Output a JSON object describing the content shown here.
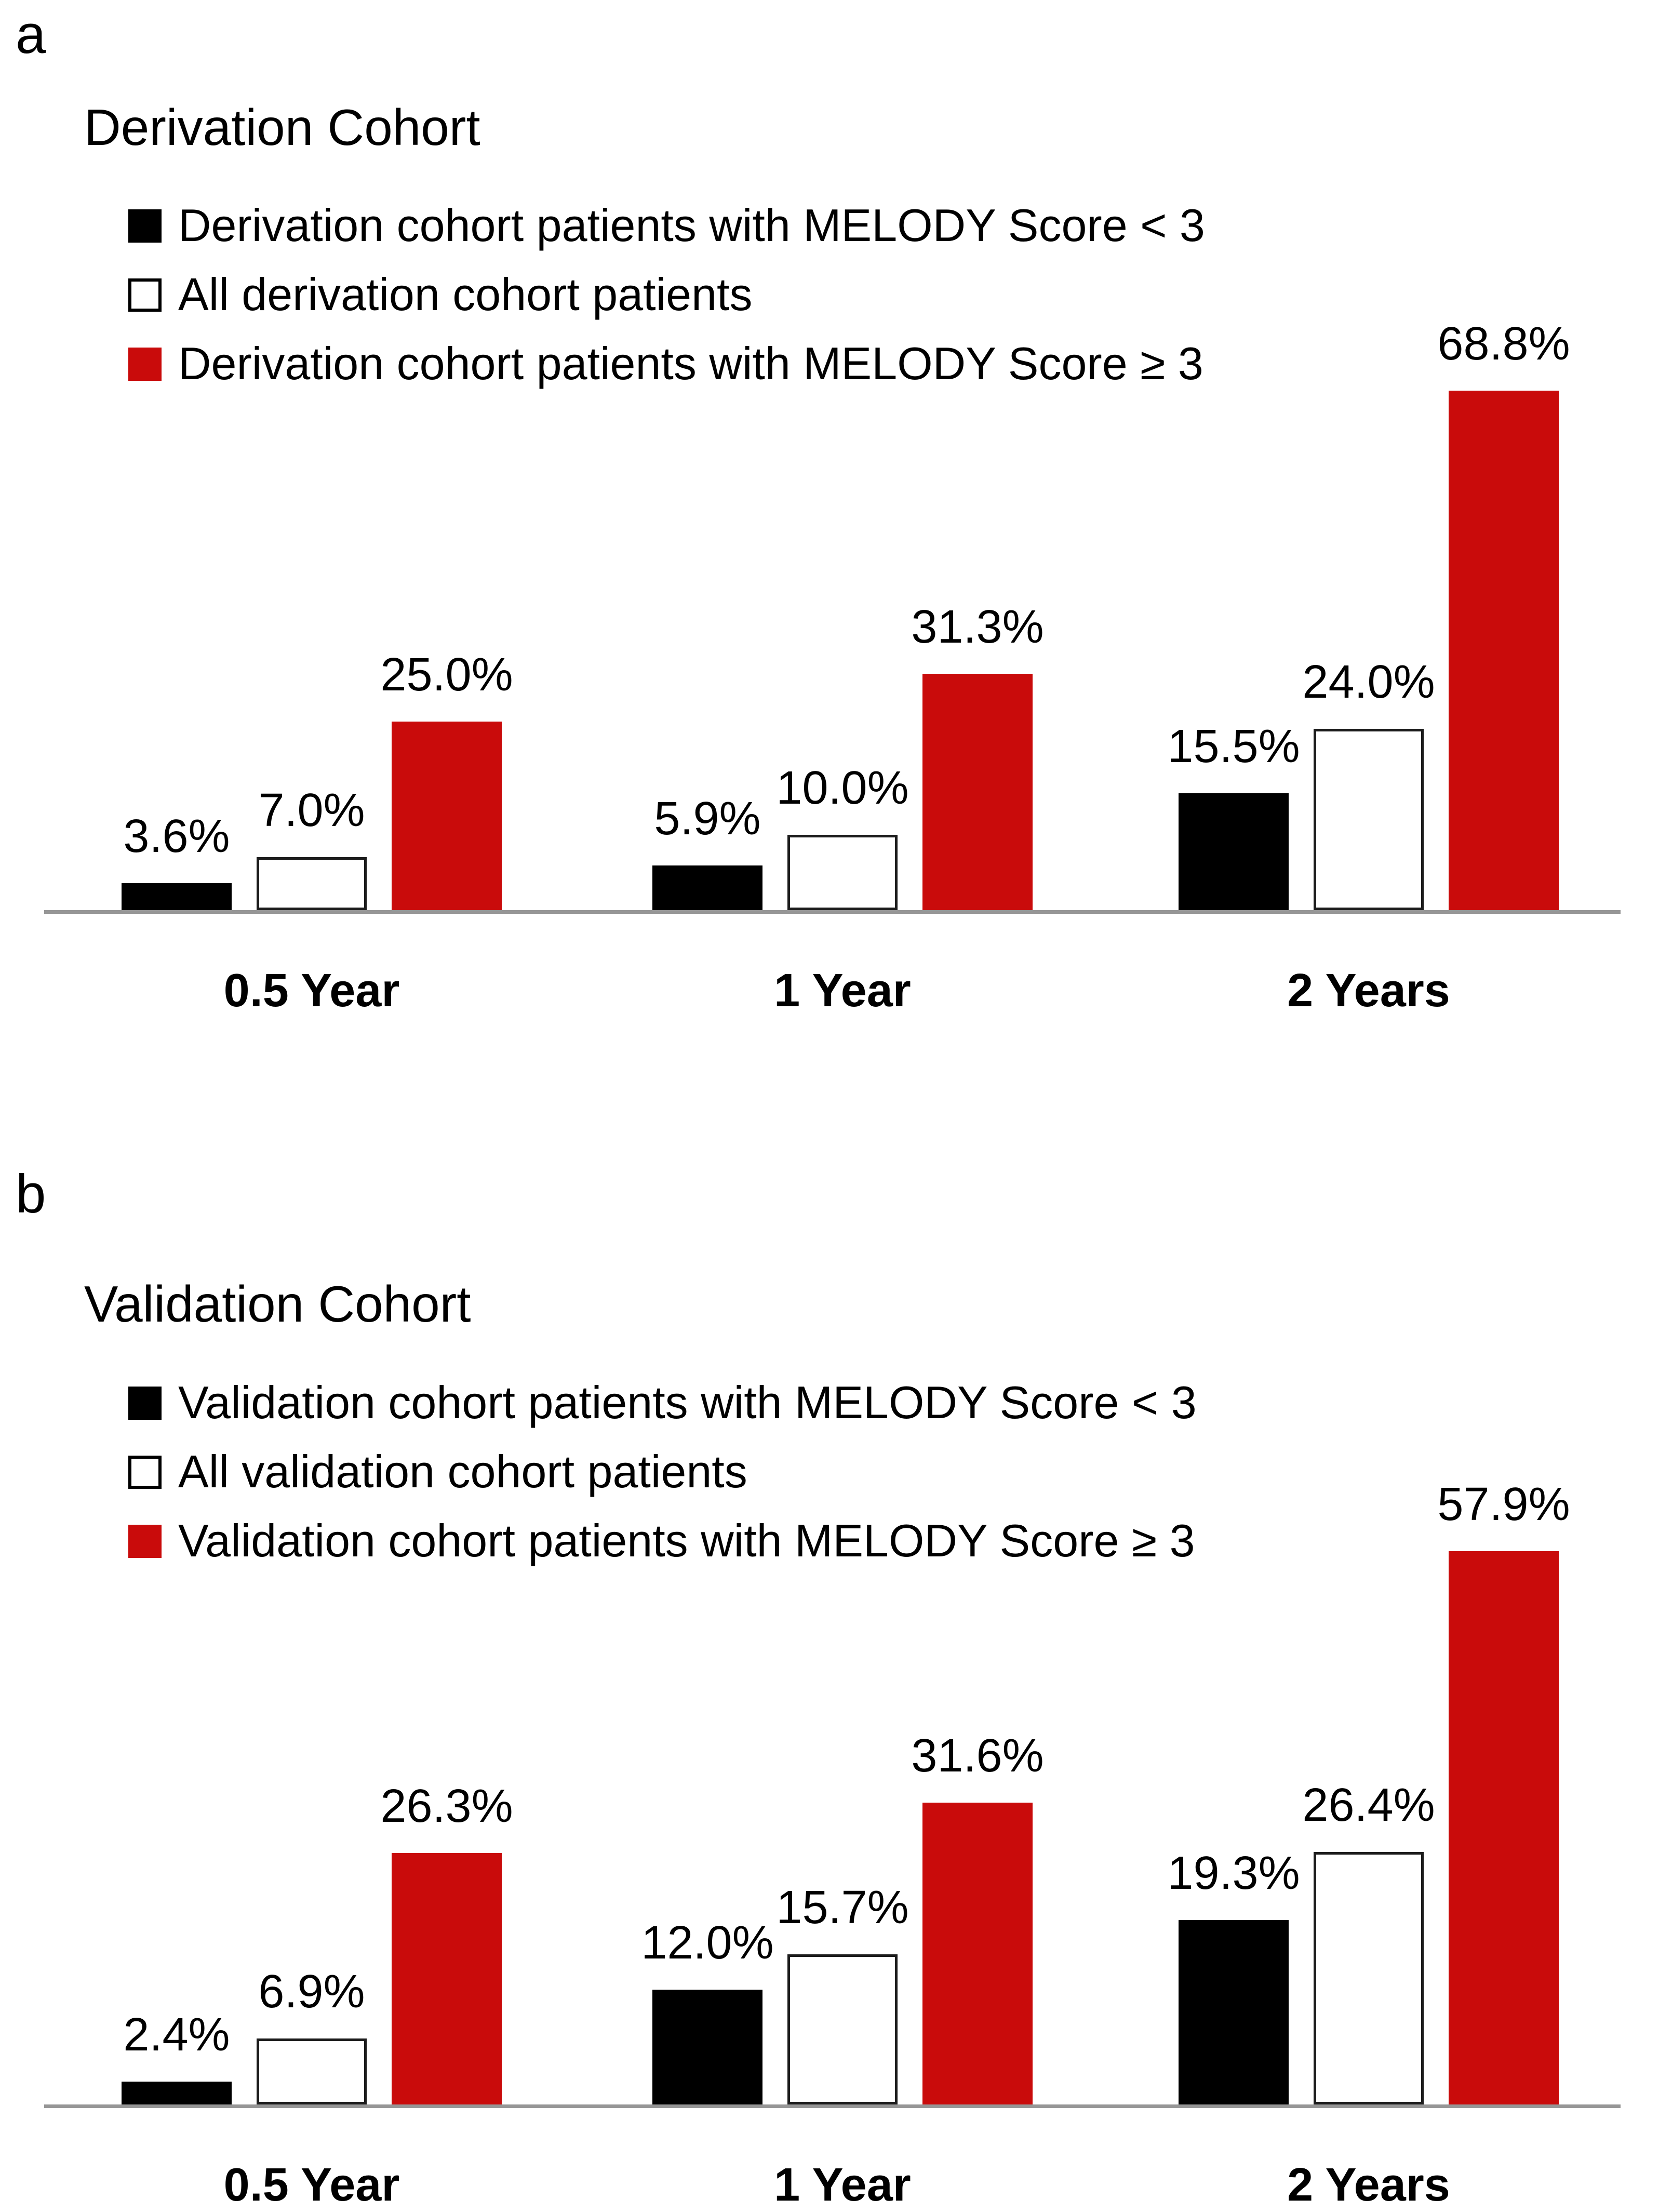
{
  "colors": {
    "bar_black": "#000000",
    "bar_white_fill": "#FFFFFF",
    "bar_white_border": "#1C1C1C",
    "bar_red": "#C90B0B",
    "axis_line": "#969696",
    "text": "#000000"
  },
  "chart_data": [
    {
      "type": "bar",
      "panel_letter": "a",
      "title": "Derivation Cohort",
      "categories": [
        "0.5 Year",
        "1 Year",
        "2 Years"
      ],
      "series": [
        {
          "name": "Derivation cohort patients with MELODY Score < 3",
          "color_key": "black",
          "values": [
            3.6,
            5.9,
            15.5
          ],
          "labels": [
            "3.6%",
            "5.9%",
            "15.5%"
          ]
        },
        {
          "name": "All derivation cohort patients",
          "color_key": "white",
          "values": [
            7.0,
            10.0,
            24.0
          ],
          "labels": [
            "7.0%",
            "10.0%",
            "24.0%"
          ]
        },
        {
          "name": "Derivation cohort patients with MELODY Score ≥ 3",
          "color_key": "red",
          "values": [
            25.0,
            31.3,
            68.8
          ],
          "labels": [
            "25.0%",
            "31.3%",
            "68.8%"
          ]
        }
      ],
      "xlabel": "",
      "ylabel": "",
      "ylim": [
        0,
        70
      ],
      "grid": false,
      "y_axis_visible": false,
      "legend_position": "top-left",
      "data_labels": true
    },
    {
      "type": "bar",
      "panel_letter": "b",
      "title": "Validation Cohort",
      "categories": [
        "0.5 Year",
        "1 Year",
        "2 Years"
      ],
      "series": [
        {
          "name": "Validation cohort patients with MELODY Score < 3",
          "color_key": "black",
          "values": [
            2.4,
            12.0,
            19.3
          ],
          "labels": [
            "2.4%",
            "12.0%",
            "19.3%"
          ]
        },
        {
          "name": "All validation cohort patients",
          "color_key": "white",
          "values": [
            6.9,
            15.7,
            26.4
          ],
          "labels": [
            "6.9%",
            "15.7%",
            "26.4%"
          ]
        },
        {
          "name": "Validation cohort patients with MELODY Score ≥ 3",
          "color_key": "red",
          "values": [
            26.3,
            31.6,
            57.9
          ],
          "labels": [
            "26.3%",
            "31.6%",
            "57.9%"
          ]
        }
      ],
      "xlabel": "",
      "ylabel": "",
      "ylim": [
        0,
        60
      ],
      "grid": false,
      "y_axis_visible": false,
      "legend_position": "top-left",
      "data_labels": true
    }
  ]
}
